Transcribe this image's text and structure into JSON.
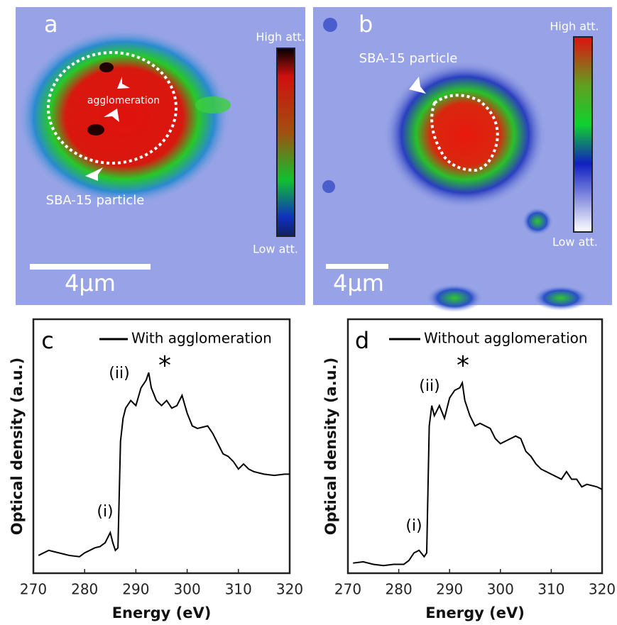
{
  "images": [
    {
      "label": "a",
      "colorbar_high": "High att.",
      "colorbar_low": "Low att.",
      "scale_bar": "4μm",
      "annotations": [
        "agglomeration",
        "SBA-15 particle"
      ]
    },
    {
      "label": "b",
      "colorbar_high": "High att.",
      "colorbar_low": "Low att.",
      "scale_bar": "4μm",
      "annotations": [
        "SBA-15 particle"
      ]
    }
  ],
  "chart_data": [
    {
      "type": "line",
      "panel_label": "c",
      "xlabel": "Energy (eV)",
      "ylabel": "Optical density (a.u.)",
      "x": [
        271,
        273,
        275,
        277,
        279,
        280,
        282,
        283,
        284,
        285,
        285.5,
        286,
        286.5,
        287,
        287.5,
        288,
        289,
        290,
        291,
        292,
        292.5,
        293,
        294,
        295,
        296,
        297,
        298,
        299,
        300,
        301,
        302,
        304,
        305,
        306,
        307,
        308,
        309,
        310,
        311,
        312,
        313,
        315,
        317,
        319,
        320
      ],
      "series": [
        {
          "name": "With agglomeration",
          "color": "#000000",
          "values": [
            0.07,
            0.09,
            0.08,
            0.07,
            0.065,
            0.08,
            0.1,
            0.105,
            0.12,
            0.16,
            0.12,
            0.09,
            0.1,
            0.52,
            0.61,
            0.65,
            0.68,
            0.66,
            0.73,
            0.76,
            0.79,
            0.73,
            0.68,
            0.66,
            0.68,
            0.65,
            0.66,
            0.7,
            0.63,
            0.58,
            0.57,
            0.58,
            0.55,
            0.51,
            0.47,
            0.46,
            0.44,
            0.41,
            0.43,
            0.41,
            0.4,
            0.39,
            0.385,
            0.39,
            0.39
          ]
        }
      ],
      "xlim": [
        270,
        320
      ],
      "xticks": [
        270,
        280,
        290,
        300,
        310,
        320
      ],
      "ylim": [
        0,
        1
      ],
      "annotations": [
        "(i)",
        "(ii)",
        "*"
      ]
    },
    {
      "type": "line",
      "panel_label": "d",
      "xlabel": "Energy (eV)",
      "ylabel": "Optical density (a.u.)",
      "x": [
        271,
        273,
        275,
        277,
        279,
        281,
        282,
        283,
        284,
        285,
        285.5,
        286,
        286.5,
        287,
        288,
        289,
        290,
        291,
        292,
        292.5,
        293,
        294,
        295,
        296,
        297,
        298,
        299,
        300,
        302,
        303,
        304,
        305,
        306,
        307,
        308,
        310,
        312,
        313,
        314,
        315,
        316,
        317,
        319,
        320
      ],
      "series": [
        {
          "name": "Without agglomeration",
          "color": "#000000",
          "values": [
            0.04,
            0.045,
            0.035,
            0.03,
            0.035,
            0.035,
            0.05,
            0.08,
            0.09,
            0.065,
            0.08,
            0.58,
            0.66,
            0.62,
            0.66,
            0.61,
            0.69,
            0.72,
            0.73,
            0.75,
            0.68,
            0.62,
            0.58,
            0.59,
            0.58,
            0.57,
            0.53,
            0.51,
            0.53,
            0.54,
            0.53,
            0.48,
            0.46,
            0.43,
            0.41,
            0.39,
            0.37,
            0.4,
            0.37,
            0.37,
            0.34,
            0.35,
            0.34,
            0.33
          ]
        }
      ],
      "xlim": [
        270,
        320
      ],
      "xticks": [
        270,
        280,
        290,
        300,
        310,
        320
      ],
      "ylim": [
        0,
        1
      ],
      "annotations": [
        "(i)",
        "(ii)",
        "*"
      ]
    }
  ]
}
